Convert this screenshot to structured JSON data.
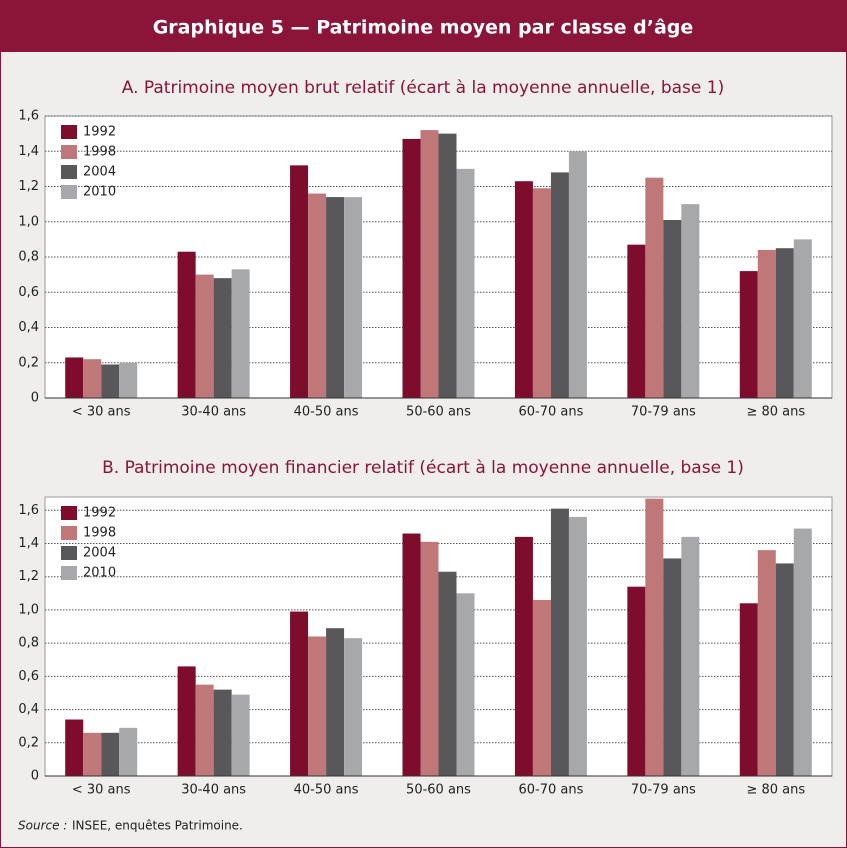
{
  "title": "Graphique 5 — Patrimoine moyen par classe d’âge",
  "source": {
    "label": "Source :",
    "text": "INSEE, enquêtes Patrimoine."
  },
  "chart_data": [
    {
      "type": "bar",
      "title": "A. Patrimoine moyen brut relatif (écart à la moyenne annuelle, base 1)",
      "categories": [
        "< 30 ans",
        "30-40 ans",
        "40-50 ans",
        "50-60 ans",
        "60-70 ans",
        "70-79 ans",
        "≥ 80 ans"
      ],
      "series": [
        {
          "name": "1992",
          "color": "#7d0c2d",
          "values": [
            0.23,
            0.83,
            1.32,
            1.47,
            1.23,
            0.87,
            0.72
          ]
        },
        {
          "name": "1998",
          "color": "#bf7877",
          "values": [
            0.22,
            0.7,
            1.16,
            1.52,
            1.19,
            1.25,
            0.84
          ]
        },
        {
          "name": "2004",
          "color": "#58585a",
          "values": [
            0.19,
            0.68,
            1.14,
            1.5,
            1.28,
            1.01,
            0.85
          ]
        },
        {
          "name": "2010",
          "color": "#a7a8aa",
          "values": [
            0.2,
            0.73,
            1.14,
            1.3,
            1.4,
            1.1,
            0.9
          ]
        }
      ],
      "ylim": [
        0,
        1.6
      ],
      "yticks": [
        0,
        {
          "value": 0.2,
          "label": "0,2"
        },
        {
          "value": 0.4,
          "label": "0,4"
        },
        {
          "value": 0.6,
          "label": "0,6"
        },
        {
          "value": 0.8,
          "label": "0,8"
        },
        {
          "value": 1.0,
          "label": "1,0"
        },
        {
          "value": 1.2,
          "label": "1,2"
        },
        {
          "value": 1.4,
          "label": "1,4"
        },
        {
          "value": 1.6,
          "label": "1,6"
        }
      ],
      "grid": true,
      "legend": "upper left"
    },
    {
      "type": "bar",
      "title": "B. Patrimoine moyen financier relatif (écart à la moyenne annuelle, base 1)",
      "categories": [
        "< 30 ans",
        "30-40 ans",
        "40-50 ans",
        "50-60 ans",
        "60-70 ans",
        "70-79 ans",
        "≥ 80 ans"
      ],
      "series": [
        {
          "name": "1992",
          "color": "#7d0c2d",
          "values": [
            0.34,
            0.66,
            0.99,
            1.46,
            1.44,
            1.14,
            1.04
          ]
        },
        {
          "name": "1998",
          "color": "#bf7877",
          "values": [
            0.26,
            0.55,
            0.84,
            1.41,
            1.06,
            1.67,
            1.36
          ]
        },
        {
          "name": "2004",
          "color": "#58585a",
          "values": [
            0.26,
            0.52,
            0.89,
            1.23,
            1.61,
            1.31,
            1.28
          ]
        },
        {
          "name": "2010",
          "color": "#a7a8aa",
          "values": [
            0.29,
            0.49,
            0.83,
            1.1,
            1.56,
            1.44,
            1.49
          ]
        }
      ],
      "ylim": [
        0,
        1.68
      ],
      "yticks": [
        0,
        {
          "value": 0.2,
          "label": "0,2"
        },
        {
          "value": 0.4,
          "label": "0,4"
        },
        {
          "value": 0.6,
          "label": "0,6"
        },
        {
          "value": 0.8,
          "label": "0,8"
        },
        {
          "value": 1.0,
          "label": "1,0"
        },
        {
          "value": 1.2,
          "label": "1,2"
        },
        {
          "value": 1.4,
          "label": "1,4"
        },
        {
          "value": 1.6,
          "label": "1,6"
        }
      ],
      "grid": true,
      "legend": "upper left"
    }
  ]
}
